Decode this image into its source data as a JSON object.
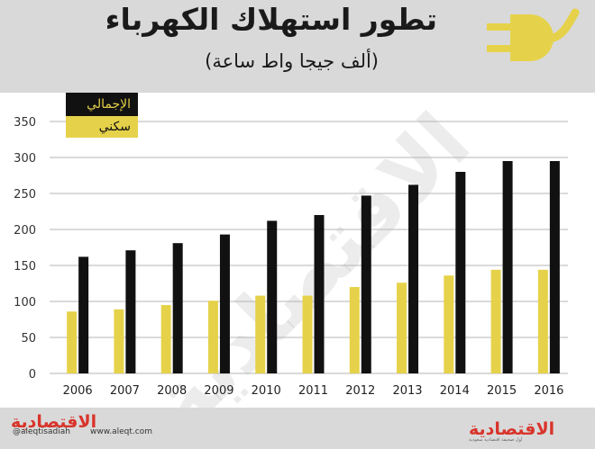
{
  "header": {
    "title": "تطور استهلاك الكهرباء",
    "subtitle": "(ألف جيجا واط ساعة)"
  },
  "legend": {
    "total": "الإجمالي",
    "residential": "سكني"
  },
  "footer": {
    "brand": "الاقتصادية",
    "twitter": "@aleqtisadiah",
    "site": "www.aleqt.com",
    "brand_right_sub": "أول صحيفة اقتصادية سعودية"
  },
  "watermark": "الاقتصادية",
  "colors": {
    "total": "#111111",
    "residential": "#e6d24a",
    "brand": "#d8342b",
    "grid": "#b5b5b5"
  },
  "chart_data": {
    "type": "bar",
    "categories": [
      "2006",
      "2007",
      "2008",
      "2009",
      "2010",
      "2011",
      "2012",
      "2013",
      "2014",
      "2015",
      "2016"
    ],
    "series": [
      {
        "name": "سكني",
        "values": [
          86,
          89,
          95,
          101,
          108,
          108,
          120,
          126,
          136,
          144,
          144
        ]
      },
      {
        "name": "الإجمالي",
        "values": [
          162,
          171,
          181,
          193,
          212,
          220,
          247,
          262,
          280,
          295,
          295
        ]
      }
    ],
    "yticks": [
      0,
      50,
      100,
      150,
      200,
      250,
      300,
      350
    ],
    "ylim": [
      0,
      350
    ],
    "grid": true,
    "legend_position": "top-left"
  }
}
